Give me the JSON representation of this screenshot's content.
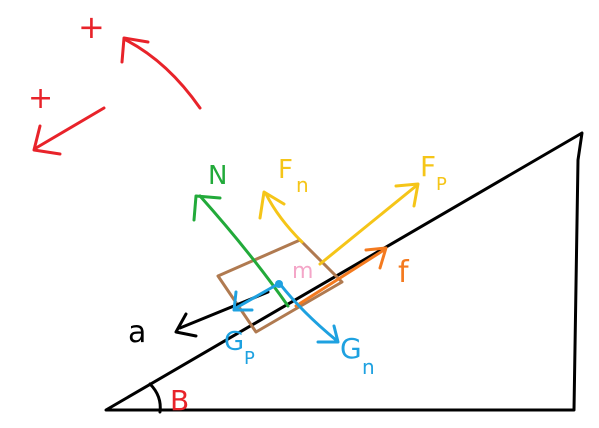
{
  "colors": {
    "ink": "#000000",
    "red": "#e8232a",
    "green": "#22aa3a",
    "yellow": "#f5c518",
    "orange": "#f47a1f",
    "blue": "#1ea1e0",
    "brown": "#b07a50",
    "pink": "#f4a6c8"
  },
  "labels": {
    "plus_top": "+",
    "plus_left": "+",
    "normal": "N",
    "fn_main": "F",
    "fn_sub": "n",
    "fp_main": "F",
    "fp_sub": "P",
    "friction": "f",
    "mass": "m",
    "accel": "a",
    "gp_main": "G",
    "gp_sub": "P",
    "gn_main": "G",
    "gn_sub": "n",
    "angle": "B"
  }
}
